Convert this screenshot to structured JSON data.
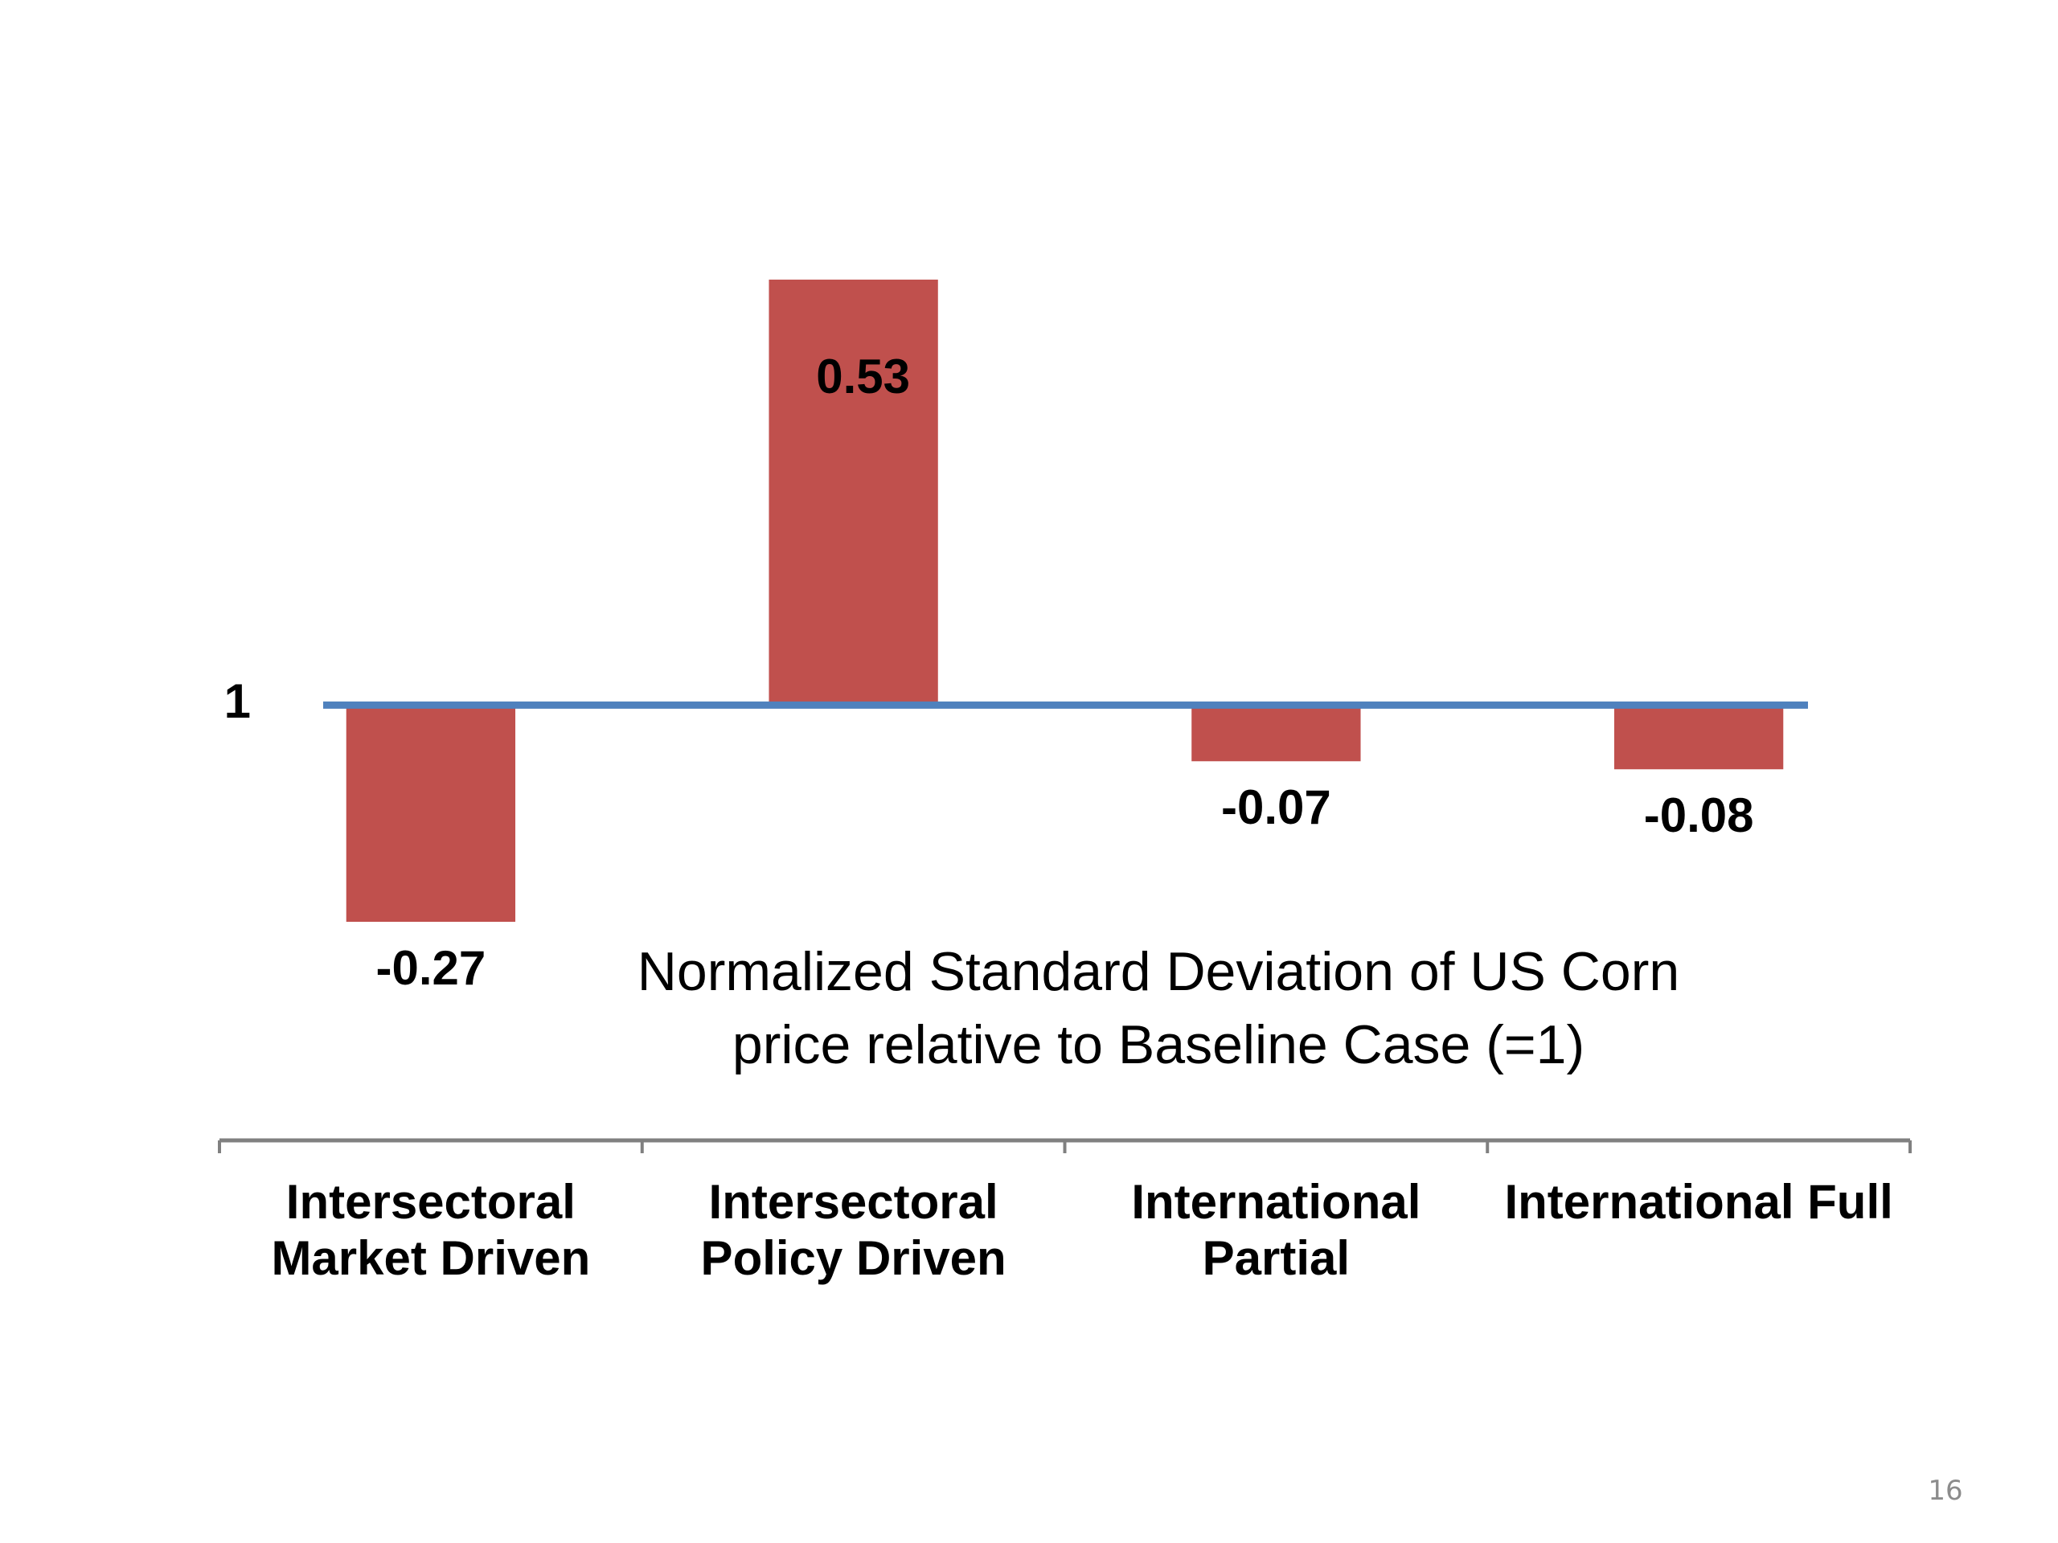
{
  "chart_data": {
    "type": "bar",
    "categories": [
      "Intersectoral Market Driven",
      "Intersectoral Policy Driven",
      "International Partial",
      "International Full"
    ],
    "values": [
      -0.27,
      0.53,
      -0.07,
      -0.08
    ],
    "color": "#c0504d",
    "baseline_color": "#4f81bd",
    "ylim": [
      -0.3,
      0.6
    ],
    "yticks": [
      {
        "value": 0,
        "label": "1"
      }
    ],
    "annotation": [
      "Normalized Standard Deviation of US Corn",
      "price relative to Baseline Case (=1)"
    ]
  },
  "page_number": "16"
}
